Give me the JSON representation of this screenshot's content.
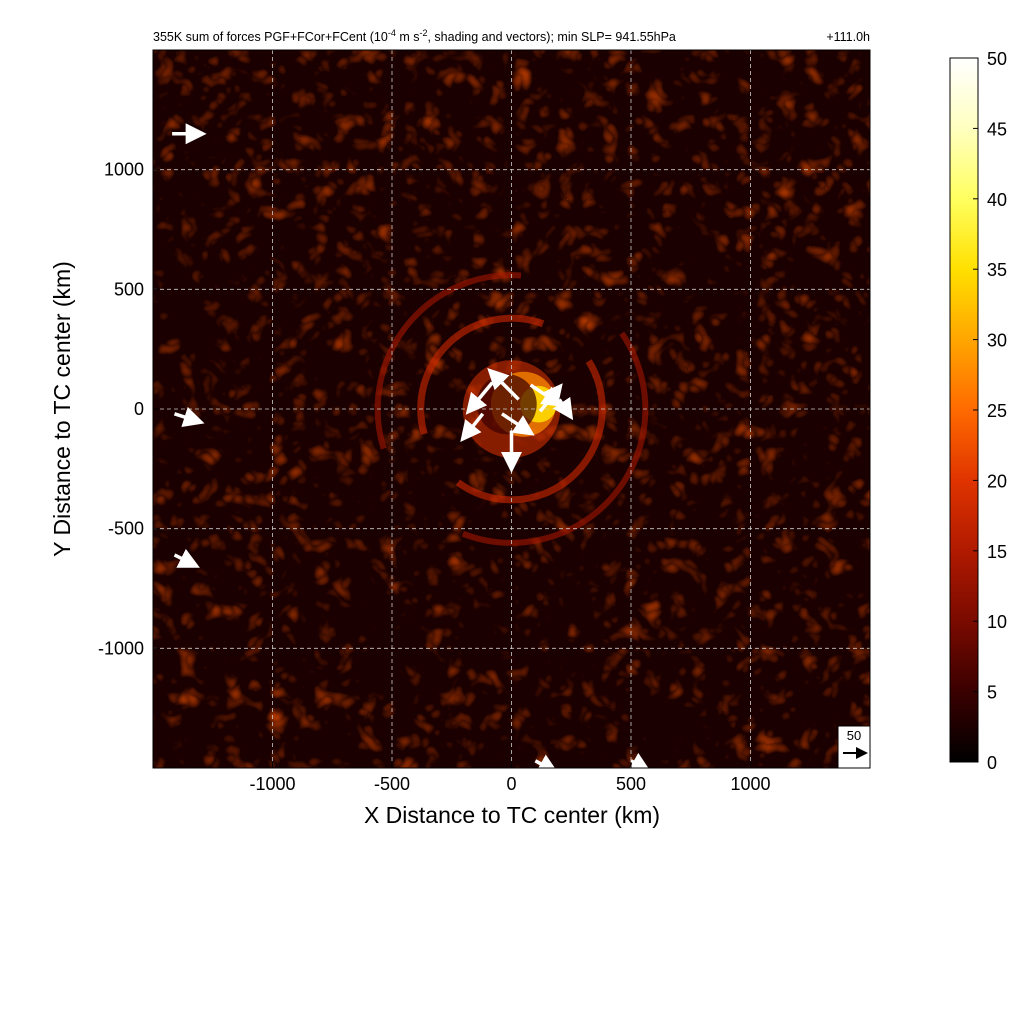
{
  "title": {
    "prefix": "355K sum of forces PGF+FCor+FCent (10",
    "sup1": "-4",
    "mid": " m s",
    "sup2": "-2",
    "suffix": ", shading and vectors); min SLP= 941.55hPa",
    "time": "+111.0h"
  },
  "reference_vector": {
    "label": "50",
    "magnitude": 50
  },
  "colors": {
    "colormap": [
      "#000000",
      "#3a0000",
      "#7a0a00",
      "#b01a00",
      "#e03400",
      "#ff6a00",
      "#ffa600",
      "#ffe000",
      "#ffff60",
      "#ffffc0",
      "#ffffff"
    ],
    "vectors": "#ffffff",
    "grid": "#cccccc"
  },
  "chart_data": {
    "type": "heatmap",
    "xlabel": "X Distance to TC center (km)",
    "ylabel": "Y Distance to TC center (km)",
    "xlim": [
      -1500,
      1500
    ],
    "ylim": [
      -1500,
      1500
    ],
    "xticks": [
      -1000,
      -500,
      0,
      500,
      1000
    ],
    "yticks": [
      -1000,
      -500,
      0,
      500,
      1000
    ],
    "xtick_labels": [
      "-1000",
      "-500",
      "0",
      "500",
      "1000"
    ],
    "ytick_labels": [
      "-1000",
      "-500",
      "0",
      "500",
      "1000"
    ],
    "grid": true,
    "colorbar": {
      "range": [
        0,
        50
      ],
      "ticks": [
        0,
        5,
        10,
        15,
        20,
        25,
        30,
        35,
        40,
        45,
        50
      ],
      "tick_labels": [
        "0",
        "5",
        "10",
        "15",
        "20",
        "25",
        "30",
        "35",
        "40",
        "45",
        "50"
      ],
      "placement": "right"
    },
    "features": {
      "core_max_center_km": [
        50,
        20
      ],
      "core_radius_km": 170,
      "ring_radius_km": 380,
      "outer_arc_radius_km": 560
    },
    "vectors": [
      {
        "x": 30,
        "y": 40,
        "u": -30,
        "v": 30
      },
      {
        "x": -80,
        "y": 110,
        "u": -25,
        "v": -30
      },
      {
        "x": 80,
        "y": 100,
        "u": 30,
        "v": -20
      },
      {
        "x": 0,
        "y": -90,
        "u": 0,
        "v": -40
      },
      {
        "x": -120,
        "y": -20,
        "u": -20,
        "v": -25
      },
      {
        "x": 120,
        "y": -10,
        "u": 20,
        "v": 25
      },
      {
        "x": -40,
        "y": -20,
        "u": 30,
        "v": -20
      },
      {
        "x": 200,
        "y": 40,
        "u": 10,
        "v": -15
      },
      {
        "x": -1420,
        "y": 1150,
        "u": 30,
        "v": 0
      },
      {
        "x": -1410,
        "y": -20,
        "u": 25,
        "v": -8
      },
      {
        "x": -1410,
        "y": -610,
        "u": 20,
        "v": -10
      },
      {
        "x": 100,
        "y": -1470,
        "u": 18,
        "v": -10
      },
      {
        "x": 500,
        "y": -1470,
        "u": 14,
        "v": -8
      }
    ]
  }
}
